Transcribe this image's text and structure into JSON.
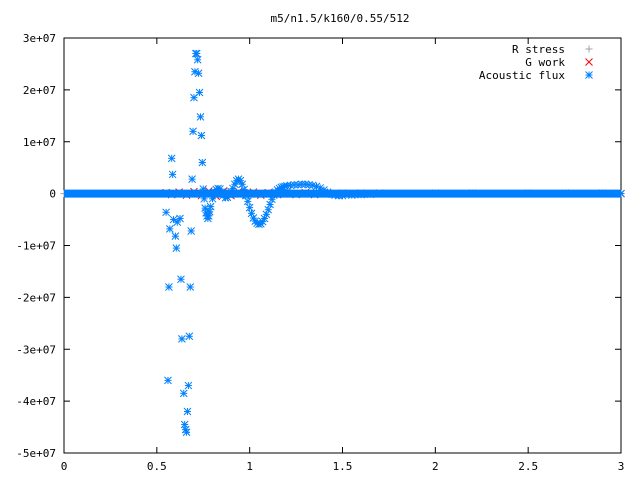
{
  "chart_data": {
    "type": "scatter",
    "title": "m5/n1.5/k160/0.55/512",
    "xlabel": "",
    "ylabel": "",
    "xlim": [
      0,
      3
    ],
    "ylim": [
      -50000000,
      30000000
    ],
    "x_ticks": [
      0,
      0.5,
      1,
      1.5,
      2,
      2.5,
      3
    ],
    "x_tick_labels": [
      "0",
      "0.5",
      "1",
      "1.5",
      "2",
      "2.5",
      "3"
    ],
    "y_ticks": [
      30000000,
      20000000,
      10000000,
      0,
      -10000000,
      -20000000,
      -30000000,
      -40000000,
      -50000000
    ],
    "y_tick_labels": [
      "3e+07",
      "2e+07",
      "1e+07",
      "0",
      "-1e+07",
      "-2e+07",
      "-3e+07",
      "-4e+07",
      "-5e+07"
    ],
    "grid": false,
    "legend_position": "top-right",
    "series": [
      {
        "name": "R stress",
        "marker": "plus",
        "color": "#a0a0a0",
        "points": [
          [
            0.0,
            0
          ],
          [
            0.2,
            0
          ],
          [
            0.4,
            0
          ],
          [
            0.6,
            0
          ],
          [
            0.8,
            0
          ],
          [
            1.0,
            0
          ],
          [
            1.2,
            0
          ],
          [
            1.4,
            0
          ],
          [
            1.6,
            0
          ],
          [
            1.8,
            0
          ],
          [
            2.0,
            0
          ],
          [
            2.2,
            0
          ],
          [
            2.4,
            0
          ],
          [
            2.6,
            0
          ],
          [
            2.8,
            0
          ],
          [
            3.0,
            0
          ]
        ]
      },
      {
        "name": "G work",
        "marker": "cross",
        "color": "#ff0000",
        "points": [
          [
            0.55,
            200000
          ],
          [
            0.58,
            -200000
          ],
          [
            0.62,
            300000
          ],
          [
            0.66,
            -300000
          ],
          [
            0.7,
            400000
          ],
          [
            0.74,
            -400000
          ],
          [
            0.78,
            500000
          ],
          [
            0.82,
            -500000
          ],
          [
            0.86,
            500000
          ],
          [
            0.9,
            -400000
          ],
          [
            0.94,
            400000
          ],
          [
            0.98,
            -300000
          ],
          [
            1.02,
            300000
          ],
          [
            1.06,
            -300000
          ],
          [
            1.1,
            200000
          ],
          [
            1.15,
            -200000
          ],
          [
            1.2,
            200000
          ],
          [
            1.25,
            -200000
          ],
          [
            1.3,
            200000
          ],
          [
            1.35,
            -200000
          ],
          [
            1.4,
            200000
          ],
          [
            1.45,
            -100000
          ],
          [
            1.5,
            100000
          ],
          [
            1.55,
            -100000
          ],
          [
            1.6,
            100000
          ],
          [
            1.65,
            -100000
          ],
          [
            1.7,
            100000
          ],
          [
            1.8,
            0
          ],
          [
            1.9,
            0
          ],
          [
            2.0,
            0
          ],
          [
            2.1,
            0
          ],
          [
            2.2,
            0
          ],
          [
            2.3,
            0
          ],
          [
            2.4,
            0
          ],
          [
            2.5,
            0
          ],
          [
            2.6,
            0
          ],
          [
            2.7,
            0
          ],
          [
            2.8,
            0
          ],
          [
            2.9,
            0
          ],
          [
            3.0,
            0
          ]
        ]
      },
      {
        "name": "Acoustic flux",
        "marker": "star",
        "color": "#0080ff",
        "points": [
          [
            0.55,
            -3600000
          ],
          [
            0.56,
            -36000000
          ],
          [
            0.565,
            -18000000
          ],
          [
            0.57,
            -6800000
          ],
          [
            0.58,
            6800000
          ],
          [
            0.585,
            3700000
          ],
          [
            0.59,
            -5000000
          ],
          [
            0.6,
            -8200000
          ],
          [
            0.605,
            -10500000
          ],
          [
            0.61,
            -5500000
          ],
          [
            0.625,
            -4800000
          ],
          [
            0.63,
            -16500000
          ],
          [
            0.635,
            -28000000
          ],
          [
            0.645,
            -38500000
          ],
          [
            0.65,
            -44500000
          ],
          [
            0.655,
            -45500000
          ],
          [
            0.66,
            -46000000
          ],
          [
            0.665,
            -42000000
          ],
          [
            0.67,
            -37000000
          ],
          [
            0.675,
            -27500000
          ],
          [
            0.68,
            -18000000
          ],
          [
            0.685,
            -7200000
          ],
          [
            0.69,
            2800000
          ],
          [
            0.695,
            12000000
          ],
          [
            0.7,
            18500000
          ],
          [
            0.705,
            23500000
          ],
          [
            0.71,
            27000000
          ],
          [
            0.715,
            27000000
          ],
          [
            0.72,
            25800000
          ],
          [
            0.725,
            23200000
          ],
          [
            0.73,
            19500000
          ],
          [
            0.735,
            14800000
          ],
          [
            0.74,
            11200000
          ],
          [
            0.745,
            6000000
          ],
          [
            0.75,
            900000
          ],
          [
            0.755,
            -1000000
          ],
          [
            0.76,
            -2800000
          ],
          [
            0.765,
            -3700000
          ],
          [
            0.77,
            -4300000
          ],
          [
            0.775,
            -4800000
          ],
          [
            0.78,
            -4300000
          ],
          [
            0.785,
            -3500000
          ],
          [
            0.79,
            -2500000
          ],
          [
            0.8,
            -1000000
          ],
          [
            0.81,
            300000
          ],
          [
            0.82,
            800000
          ],
          [
            0.83,
            1000000
          ],
          [
            0.84,
            900000
          ],
          [
            0.85,
            300000
          ],
          [
            0.86,
            -300000
          ],
          [
            0.87,
            -800000
          ],
          [
            0.88,
            -700000
          ],
          [
            0.89,
            -200000
          ],
          [
            0.9,
            400000
          ],
          [
            0.91,
            1000000
          ],
          [
            0.92,
            1800000
          ],
          [
            0.93,
            2500000
          ],
          [
            0.94,
            2800000
          ],
          [
            0.95,
            2500000
          ],
          [
            0.96,
            1800000
          ],
          [
            0.97,
            800000
          ],
          [
            0.98,
            -400000
          ],
          [
            0.99,
            -1500000
          ],
          [
            1.0,
            -2700000
          ],
          [
            1.01,
            -3800000
          ],
          [
            1.02,
            -4700000
          ],
          [
            1.03,
            -5300000
          ],
          [
            1.04,
            -5700000
          ],
          [
            1.05,
            -5900000
          ],
          [
            1.06,
            -5800000
          ],
          [
            1.07,
            -5400000
          ],
          [
            1.08,
            -4800000
          ],
          [
            1.09,
            -4000000
          ],
          [
            1.1,
            -3100000
          ],
          [
            1.11,
            -2100000
          ],
          [
            1.12,
            -1100000
          ],
          [
            1.13,
            -300000
          ],
          [
            1.14,
            300000
          ],
          [
            1.15,
            700000
          ],
          [
            1.16,
            1000000
          ],
          [
            1.17,
            1200000
          ],
          [
            1.18,
            1300000
          ],
          [
            1.19,
            1400000
          ],
          [
            1.2,
            1500000
          ],
          [
            1.22,
            1600000
          ],
          [
            1.24,
            1700000
          ],
          [
            1.26,
            1700000
          ],
          [
            1.28,
            1800000
          ],
          [
            1.3,
            1800000
          ],
          [
            1.32,
            1700000
          ],
          [
            1.34,
            1600000
          ],
          [
            1.36,
            1400000
          ],
          [
            1.38,
            1100000
          ],
          [
            1.4,
            700000
          ],
          [
            1.42,
            300000
          ],
          [
            1.44,
            -100000
          ],
          [
            1.46,
            -300000
          ],
          [
            1.48,
            -400000
          ],
          [
            1.5,
            -400000
          ],
          [
            1.55,
            -300000
          ],
          [
            1.6,
            -200000
          ],
          [
            1.65,
            -100000
          ],
          [
            1.7,
            0
          ],
          [
            1.8,
            0
          ],
          [
            1.9,
            0
          ],
          [
            2.0,
            100000
          ],
          [
            2.1,
            0
          ],
          [
            2.2,
            100000
          ],
          [
            2.3,
            0
          ],
          [
            2.4,
            0
          ],
          [
            2.5,
            100000
          ],
          [
            2.6,
            0
          ],
          [
            2.7,
            100000
          ],
          [
            2.8,
            0
          ],
          [
            2.9,
            100000
          ],
          [
            3.0,
            0
          ]
        ],
        "dense_band": {
          "x_start": 0.0,
          "x_end": 3.0,
          "y_value": 0
        }
      }
    ]
  }
}
